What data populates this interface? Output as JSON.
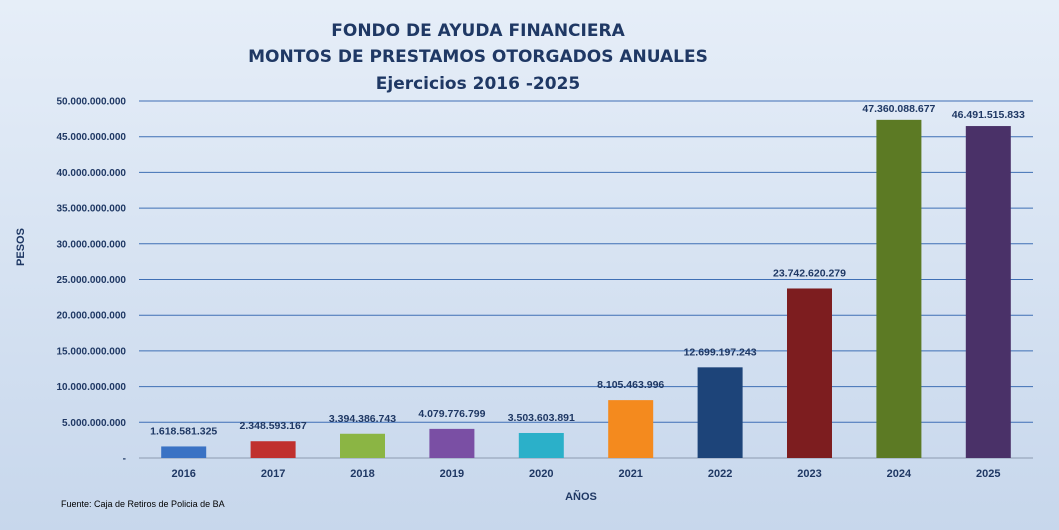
{
  "chart_data": {
    "type": "bar",
    "title_lines": [
      "FONDO DE AYUDA FINANCIERA",
      "MONTOS  DE  PRESTAMOS  OTORGADOS  ANUALES",
      "Ejercicios  2016 -2025"
    ],
    "xlabel": "AÑOS",
    "ylabel": "PESOS",
    "ylim": [
      0,
      50000000000
    ],
    "grid": true,
    "categories": [
      "2016",
      "2017",
      "2018",
      "2019",
      "2020",
      "2021",
      "2022",
      "2023",
      "2024",
      "2025"
    ],
    "values": [
      1618581325,
      2348593167,
      3394386743,
      4079776799,
      3503603891,
      8105463996,
      12699197243,
      23742620279,
      47360088677,
      46491515833
    ],
    "value_labels": [
      "1.618.581.325",
      "2.348.593.167",
      "3.394.386.743",
      "4.079.776.799",
      "3.503.603.891",
      "8.105.463.996",
      "12.699.197.243",
      "23.742.620.279",
      "47.360.088.677",
      "46.491.515.833"
    ],
    "y_ticks": [
      0,
      5000000000,
      10000000000,
      15000000000,
      20000000000,
      25000000000,
      30000000000,
      35000000000,
      40000000000,
      45000000000,
      50000000000
    ],
    "y_tick_labels": [
      "-",
      "5.000.000.000",
      "10.000.000.000",
      "15.000.000.000",
      "20.000.000.000",
      "25.000.000.000",
      "30.000.000.000",
      "35.000.000.000",
      "40.000.000.000",
      "45.000.000.000",
      "50.000.000.000"
    ],
    "bar_colors": [
      "#3a72c4",
      "#c0302e",
      "#8bb544",
      "#7a4fa4",
      "#2bb0c9",
      "#f48a1e",
      "#1d4479",
      "#7d1d1f",
      "#5c7a24",
      "#4a3168"
    ],
    "source": "Fuente: Caja de Retiros de Policia de BA"
  }
}
